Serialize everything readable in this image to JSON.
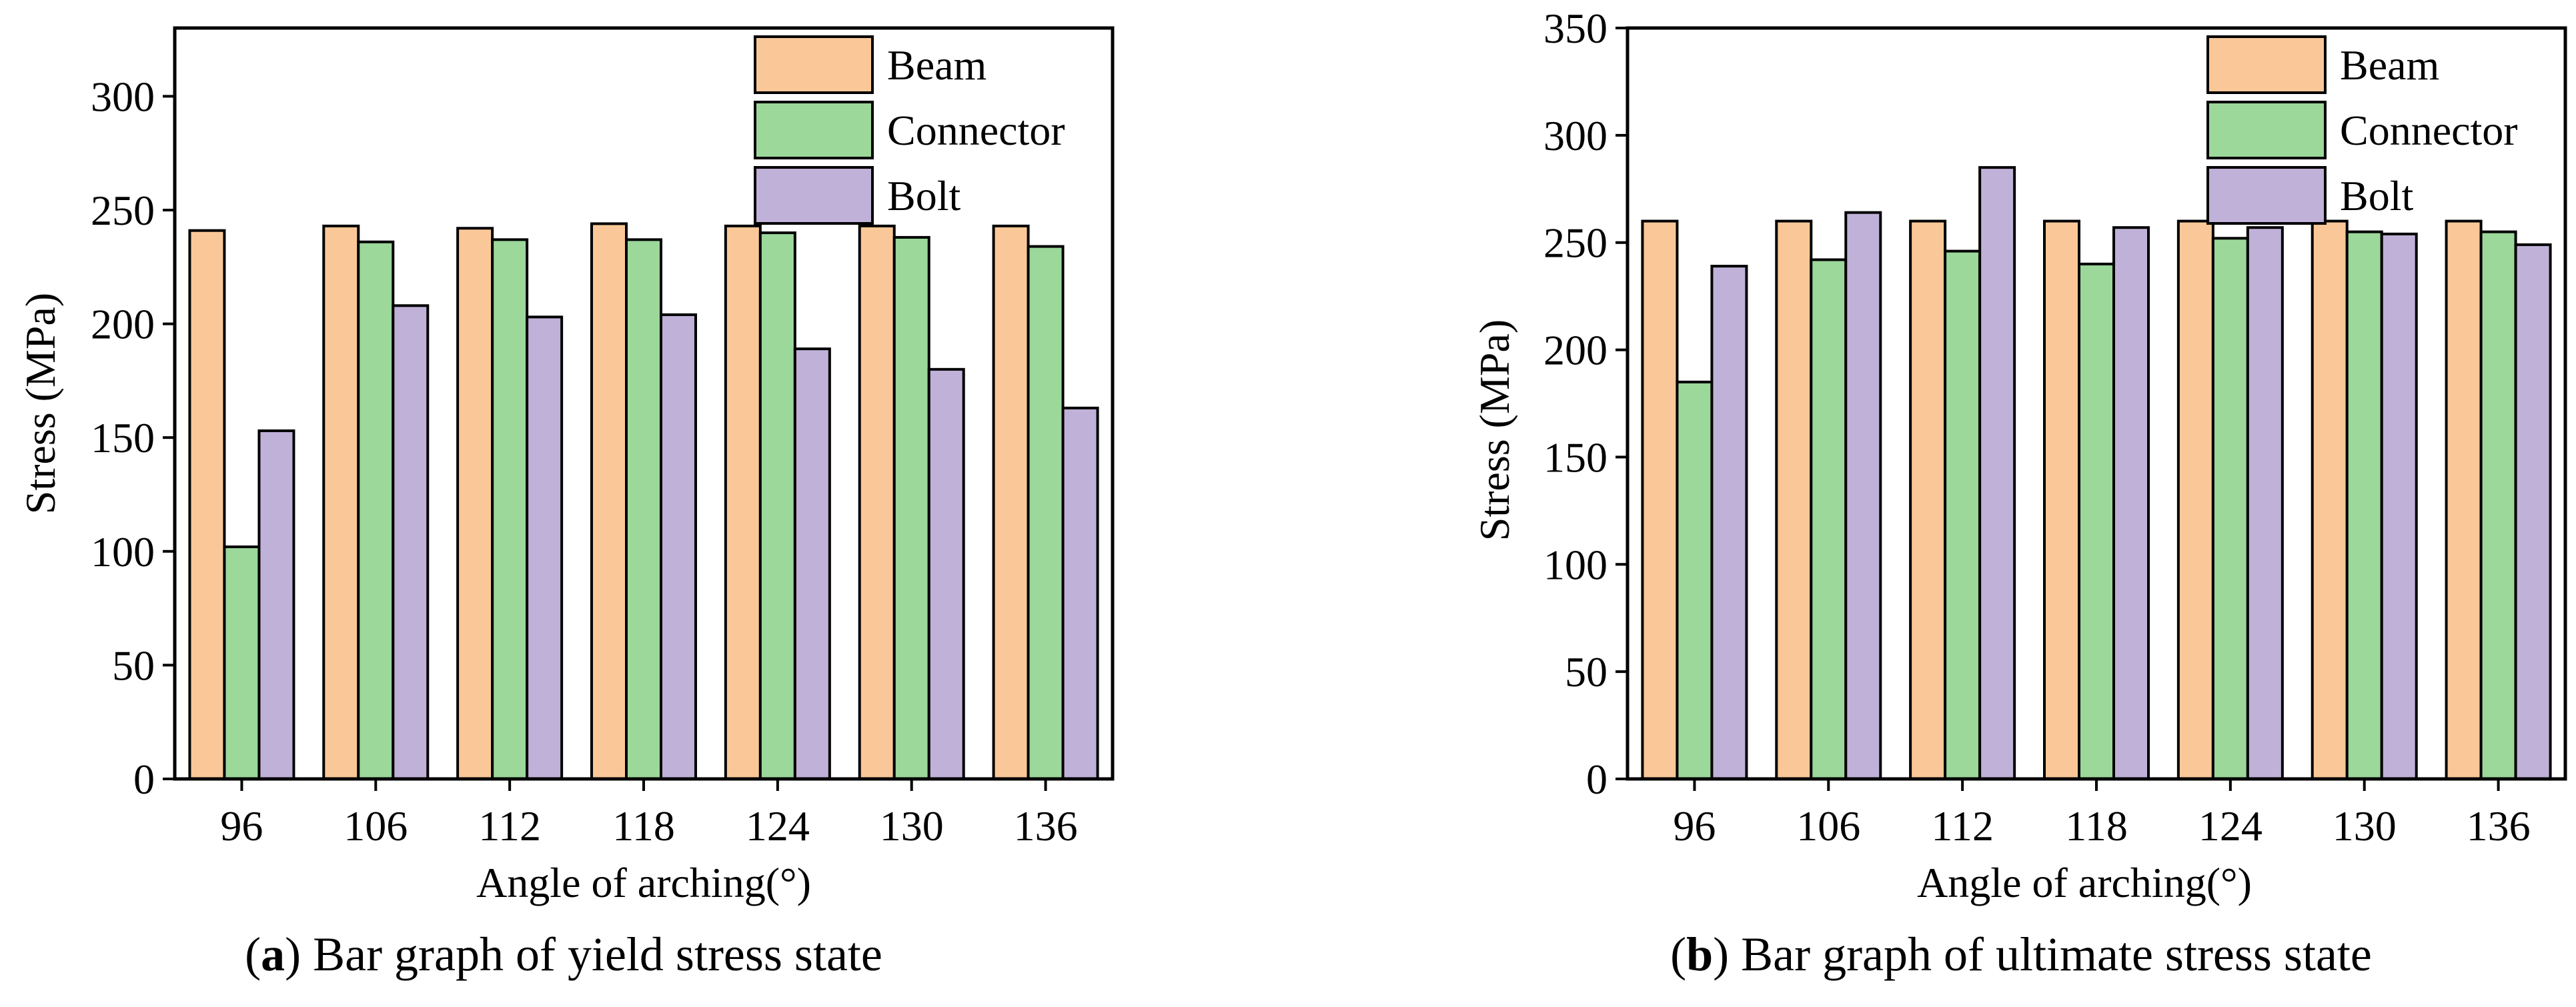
{
  "chart_data": [
    {
      "type": "bar",
      "panel_label": "a",
      "caption": " Bar graph of yield stress state",
      "xlabel": "Angle of arching(°)",
      "ylabel": "Stress (MPa)",
      "categories": [
        "96",
        "106",
        "112",
        "118",
        "124",
        "130",
        "136"
      ],
      "ylim": [
        0,
        330
      ],
      "yticks": [
        0,
        50,
        100,
        150,
        200,
        250,
        300
      ],
      "legend_position": "top-right",
      "series": [
        {
          "name": "Beam",
          "color": "#FAC898",
          "values": [
            241,
            243,
            242,
            244,
            243,
            243,
            243
          ]
        },
        {
          "name": "Connector",
          "color": "#9BD89A",
          "values": [
            102,
            236,
            237,
            237,
            240,
            238,
            234
          ]
        },
        {
          "name": "Bolt",
          "color": "#C0B1D8",
          "values": [
            153,
            208,
            203,
            204,
            189,
            180,
            163
          ]
        }
      ]
    },
    {
      "type": "bar",
      "panel_label": "b",
      "caption": " Bar graph of ultimate stress state",
      "xlabel": "Angle of arching(°)",
      "ylabel": "Stress (MPa)",
      "categories": [
        "96",
        "106",
        "112",
        "118",
        "124",
        "130",
        "136"
      ],
      "ylim": [
        0,
        350
      ],
      "yticks": [
        0,
        50,
        100,
        150,
        200,
        250,
        300,
        350
      ],
      "legend_position": "top-right",
      "series": [
        {
          "name": "Beam",
          "color": "#FAC898",
          "values": [
            260,
            260,
            260,
            260,
            260,
            260,
            260
          ]
        },
        {
          "name": "Connector",
          "color": "#9BD89A",
          "values": [
            185,
            242,
            246,
            240,
            252,
            255,
            255
          ]
        },
        {
          "name": "Bolt",
          "color": "#C0B1D8",
          "values": [
            239,
            264,
            285,
            257,
            257,
            254,
            249
          ]
        }
      ]
    }
  ]
}
